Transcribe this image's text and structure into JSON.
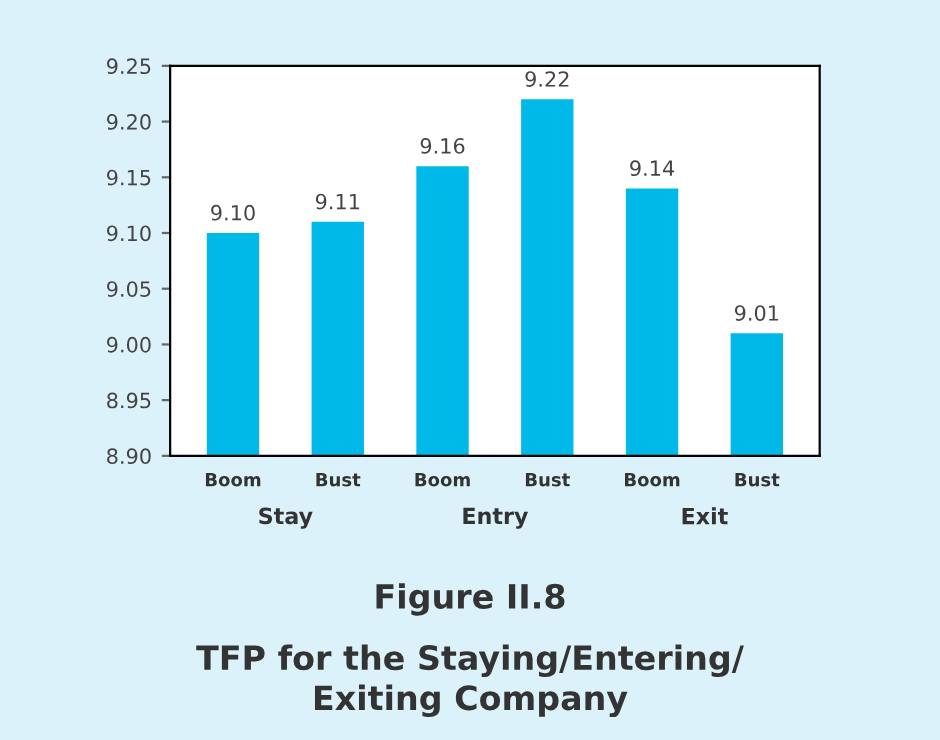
{
  "chart_data": {
    "type": "bar",
    "title": "Figure II.8",
    "subtitle": "TFP for the Staying/Entering/\nExiting Company",
    "categories": [
      "Boom",
      "Bust",
      "Boom",
      "Bust",
      "Boom",
      "Bust"
    ],
    "values": [
      9.1,
      9.11,
      9.16,
      9.22,
      9.14,
      9.01
    ],
    "color": "#00b9e8",
    "annotations": [
      "Stay",
      "Entry",
      "Exit"
    ],
    "ylim": [
      8.9,
      9.25
    ],
    "yticks": [
      {
        "value": 8.9,
        "label": "8.90"
      },
      {
        "value": 8.95,
        "label": "8.95"
      },
      {
        "value": 9.0,
        "label": "9.00"
      },
      {
        "value": 9.05,
        "label": "9.05"
      },
      {
        "value": 9.1,
        "label": "9.10"
      },
      {
        "value": 9.15,
        "label": "9.15"
      },
      {
        "value": 9.2,
        "label": "9.20"
      },
      {
        "value": 9.25,
        "label": "9.25"
      }
    ],
    "value_labels": [
      "9.10",
      "9.11",
      "9.16",
      "9.22",
      "9.14",
      "9.01"
    ],
    "grid": false,
    "legend": false
  }
}
